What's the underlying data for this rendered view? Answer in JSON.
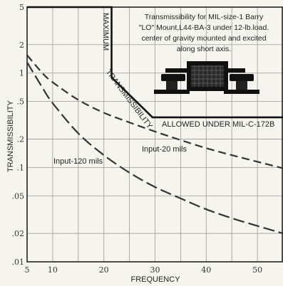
{
  "chart_data": {
    "type": "line",
    "title": "",
    "xlabel": "FREQUENCY",
    "ylabel": "TRANSMISSIBILITY",
    "x_scale": "linear",
    "y_scale": "log",
    "xlim": [
      5,
      55
    ],
    "ylim": [
      0.01,
      5
    ],
    "grid": true,
    "x_ticks": [
      "5",
      "10",
      "20",
      "30",
      "40",
      "50"
    ],
    "x_tick_values": [
      5,
      10,
      20,
      30,
      40,
      50
    ],
    "y_ticks": [
      "5",
      "2",
      "1",
      ".5",
      ".2",
      ".1",
      ".05",
      ".02",
      ".01"
    ],
    "y_tick_values": [
      5,
      2,
      1,
      0.5,
      0.2,
      0.1,
      0.05,
      0.02,
      0.01
    ],
    "series": [
      {
        "name": "Input-120 mils",
        "style": "dashed",
        "points": [
          [
            5,
            1.3
          ],
          [
            8,
            0.7
          ],
          [
            10,
            0.48
          ],
          [
            15,
            0.23
          ],
          [
            20,
            0.135
          ],
          [
            25,
            0.088
          ],
          [
            30,
            0.062
          ],
          [
            35,
            0.047
          ],
          [
            40,
            0.036
          ],
          [
            45,
            0.029
          ],
          [
            50,
            0.024
          ],
          [
            55,
            0.02
          ]
        ]
      },
      {
        "name": "Input-20 mils",
        "style": "dashed",
        "points": [
          [
            5,
            1.55
          ],
          [
            8,
            1.0
          ],
          [
            10,
            0.8
          ],
          [
            15,
            0.52
          ],
          [
            20,
            0.38
          ],
          [
            25,
            0.3
          ],
          [
            30,
            0.24
          ],
          [
            35,
            0.195
          ],
          [
            40,
            0.16
          ],
          [
            45,
            0.135
          ],
          [
            50,
            0.115
          ],
          [
            55,
            0.098
          ]
        ]
      },
      {
        "name": "MAXIMUM TRANSMISSIBILITY ALLOWED UNDER MIL-C-172B",
        "style": "solid-heavy",
        "points": [
          [
            5,
            5
          ],
          [
            21.5,
            5
          ],
          [
            21.5,
            0.9
          ],
          [
            29.5,
            0.34
          ],
          [
            55,
            0.34
          ]
        ]
      }
    ],
    "labels": {
      "maximum": "MAXIMUM",
      "transmissibility": "TRANSMISSIBILITY",
      "allowed": "ALLOWED UNDER MIL-C-172B",
      "input120": "Input-120 mils",
      "input20": "Input-20 mils"
    },
    "annotation": [
      "Transmissibility for MIL-size-1 Barry",
      "\"LO\" Mount,L44-BA-3 under 12-lb.load.",
      "center of gravity mounted and excited",
      "along short axis."
    ]
  }
}
